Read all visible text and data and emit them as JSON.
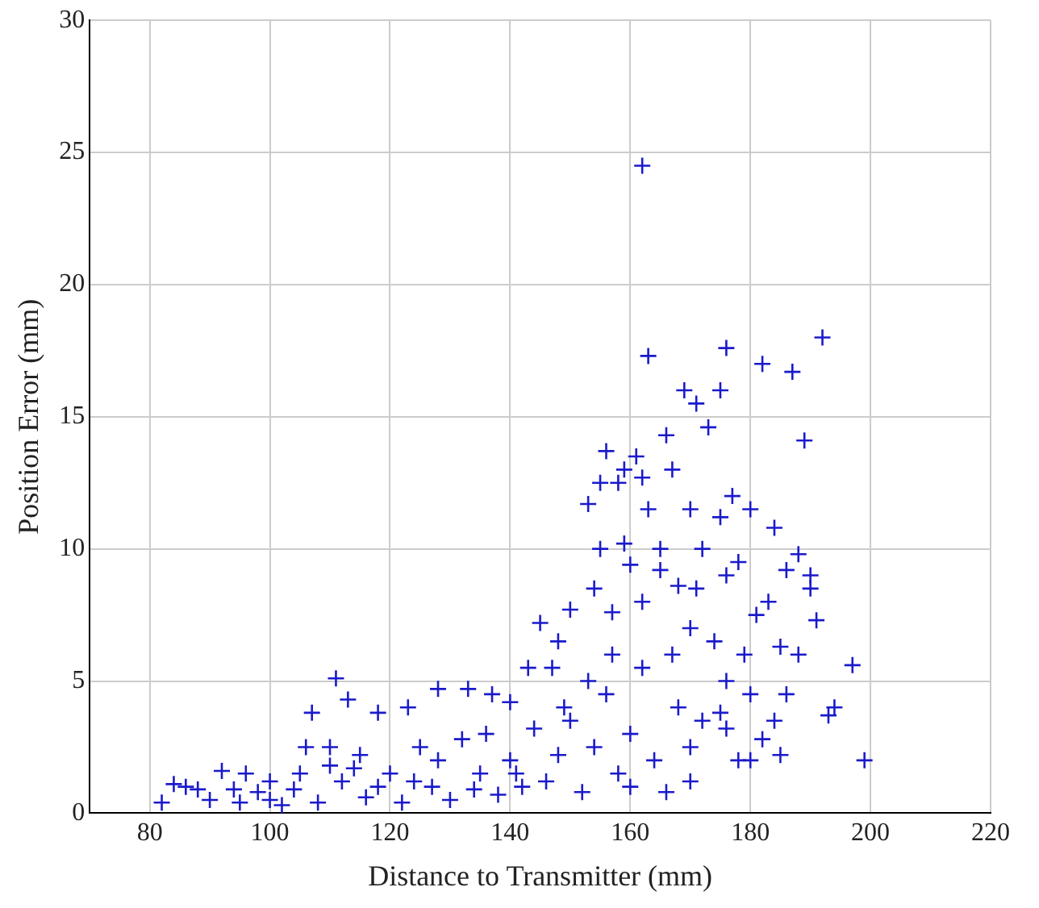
{
  "chart_data": {
    "type": "scatter",
    "xlabel": "Distance to Transmitter (mm)",
    "ylabel": "Position Error (mm)",
    "xlim": [
      70,
      220
    ],
    "xticks": [
      80,
      100,
      120,
      140,
      160,
      180,
      200,
      220
    ],
    "ylim": [
      0,
      30
    ],
    "yticks": [
      0,
      5,
      10,
      15,
      20,
      25,
      30
    ],
    "grid": true,
    "marker": "cross",
    "series": [
      {
        "color": "#1a1acc",
        "x": [
          162,
          163,
          176,
          192,
          182,
          187,
          169,
          175,
          171,
          173,
          166,
          189,
          156,
          161,
          159,
          155,
          167,
          177,
          180,
          184,
          153,
          163,
          170,
          175,
          160,
          165,
          172,
          178,
          186,
          188,
          190,
          191,
          194,
          197,
          199,
          193,
          185,
          181,
          179,
          176,
          170,
          168,
          162,
          157,
          154,
          150,
          148,
          145,
          147,
          143,
          140,
          137,
          133,
          128,
          123,
          118,
          111,
          113,
          107,
          115,
          110,
          105,
          100,
          96,
          92,
          88,
          84,
          82,
          86,
          90,
          95,
          98,
          102,
          104,
          108,
          112,
          116,
          120,
          122,
          125,
          127,
          130,
          132,
          135,
          138,
          140,
          142,
          144,
          146,
          150,
          152,
          154,
          156,
          158,
          160,
          162,
          164,
          166,
          168,
          170,
          172,
          174,
          176,
          178,
          180,
          182,
          184,
          186,
          188,
          190,
          157,
          159,
          165,
          171,
          183,
          176,
          167,
          153,
          149,
          136,
          128,
          118,
          110,
          100,
          94,
          106,
          114,
          124,
          134,
          141,
          148,
          160,
          170,
          180,
          175,
          185,
          162,
          155,
          158
        ],
        "values": [
          24.5,
          17.3,
          17.6,
          18,
          17,
          16.7,
          16,
          16,
          15.5,
          14.6,
          14.3,
          14.1,
          13.7,
          13.5,
          13,
          12.5,
          13,
          12,
          11.5,
          10.8,
          11.7,
          11.5,
          11.5,
          11.2,
          9.4,
          10,
          10,
          9.5,
          9.2,
          9.8,
          8.5,
          7.3,
          4,
          5.6,
          2,
          3.7,
          6.3,
          7.5,
          6,
          5,
          7,
          8.6,
          8,
          7.6,
          8.5,
          7.7,
          6.5,
          7.2,
          5.5,
          5.5,
          4.2,
          4.5,
          4.7,
          4.7,
          4,
          3.8,
          5.1,
          4.3,
          3.8,
          2.2,
          2.5,
          1.5,
          1.2,
          1.5,
          1.6,
          0.9,
          1.1,
          0.4,
          1,
          0.5,
          0.4,
          0.8,
          0.3,
          0.9,
          0.4,
          1.2,
          0.6,
          1.5,
          0.4,
          2.5,
          1,
          0.5,
          2.8,
          1.5,
          0.7,
          2,
          1,
          3.2,
          1.2,
          3.5,
          0.8,
          2.5,
          4.5,
          1.5,
          3,
          5.5,
          2,
          0.8,
          4,
          2.5,
          3.5,
          6.5,
          3.2,
          2,
          4.5,
          2.8,
          3.5,
          4.5,
          6,
          9,
          6,
          10.2,
          9.2,
          8.5,
          8,
          9,
          6,
          5,
          4,
          3,
          2,
          1,
          1.8,
          0.5,
          0.9,
          2.5,
          1.7,
          1.2,
          0.9,
          1.5,
          2.2,
          1,
          1.2,
          2,
          3.8,
          2.2,
          12.7,
          10,
          12.5
        ]
      }
    ]
  }
}
